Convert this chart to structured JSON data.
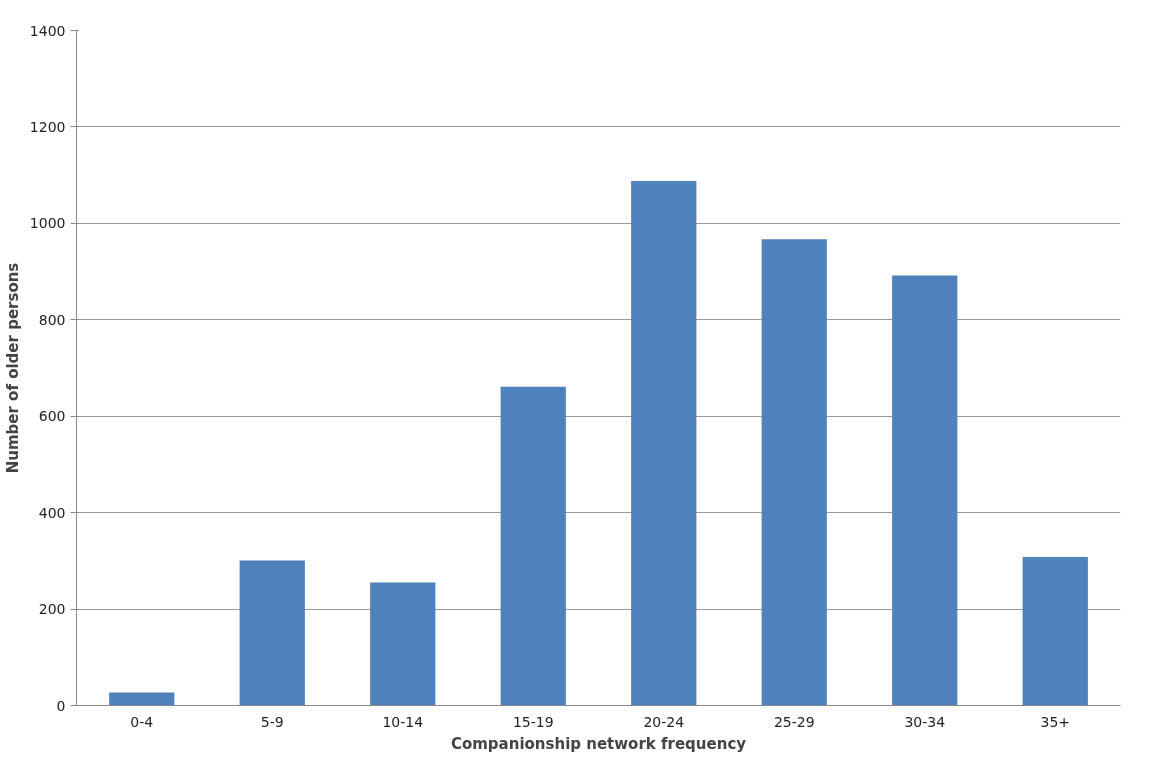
{
  "chart_data": {
    "type": "bar",
    "xlabel": "Companionship network frequency",
    "ylabel": "Number of older persons",
    "categories": [
      "0-4",
      "5-9",
      "10-14",
      "15-19",
      "20-24",
      "25-29",
      "30-34",
      "35+"
    ],
    "values": [
      27,
      301,
      255,
      661,
      1088,
      967,
      892,
      308
    ],
    "color": "#4f81bd",
    "ylim": [
      0,
      1400
    ],
    "yticks": [
      0,
      200,
      400,
      600,
      800,
      1000,
      1200,
      1400
    ],
    "grid": "y"
  }
}
